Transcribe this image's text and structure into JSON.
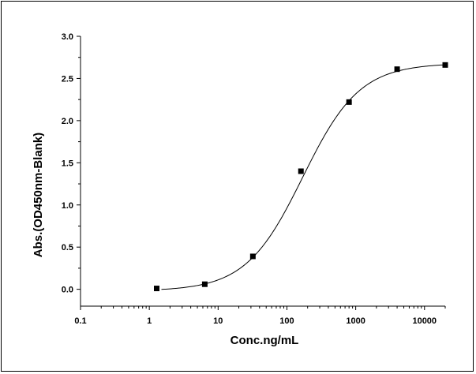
{
  "chart_data": {
    "type": "scatter",
    "xlabel": "Conc.ng/mL",
    "ylabel": "Abs.(OD450nm-Blank)",
    "x_scale": "log",
    "xlim": [
      0.1,
      20000
    ],
    "ylim": [
      -0.2,
      3.0
    ],
    "x_ticks": [
      {
        "value": 0.1,
        "label": "0.1"
      },
      {
        "value": 1,
        "label": "1"
      },
      {
        "value": 10,
        "label": "10"
      },
      {
        "value": 100,
        "label": "100"
      },
      {
        "value": 1000,
        "label": "1000"
      },
      {
        "value": 10000,
        "label": "10000"
      }
    ],
    "y_ticks": [
      {
        "value": 0.0,
        "label": "0.0"
      },
      {
        "value": 0.5,
        "label": "0.5"
      },
      {
        "value": 1.0,
        "label": "1.0"
      },
      {
        "value": 1.5,
        "label": "1.5"
      },
      {
        "value": 2.0,
        "label": "2.0"
      },
      {
        "value": 2.5,
        "label": "2.5"
      },
      {
        "value": 3.0,
        "label": "3.0"
      }
    ],
    "grid": false,
    "points": [
      {
        "x": 1.28,
        "y": 0.01
      },
      {
        "x": 6.4,
        "y": 0.06
      },
      {
        "x": 32,
        "y": 0.39
      },
      {
        "x": 160,
        "y": 1.4
      },
      {
        "x": 800,
        "y": 2.22
      },
      {
        "x": 4000,
        "y": 2.61
      },
      {
        "x": 20000,
        "y": 2.66
      }
    ],
    "fit_curve": {
      "model": "4PL",
      "bottom": -0.02,
      "top": 2.68,
      "ec50": 170,
      "hill": 1.05,
      "x_range": [
        1.5,
        20000
      ]
    },
    "marker_color": "#000000",
    "line_color": "#000000"
  }
}
